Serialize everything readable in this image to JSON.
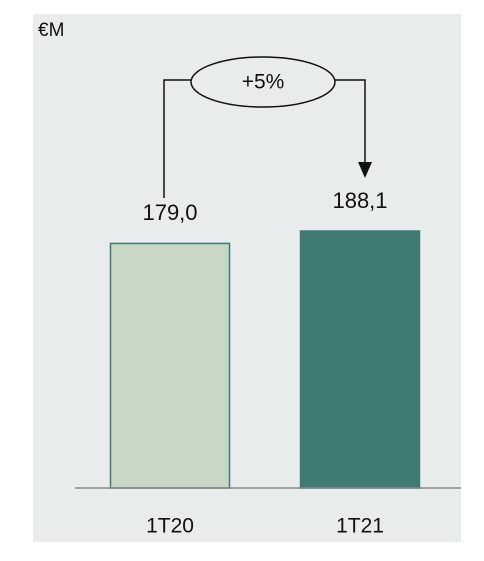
{
  "chart_data": {
    "type": "bar",
    "unit": "€M",
    "categories": [
      "1T20",
      "1T21"
    ],
    "values": [
      179.0,
      188.1
    ],
    "value_labels": [
      "179,0",
      "188,1"
    ],
    "colors": [
      "#c9d7c6",
      "#3f7b72"
    ],
    "annotation": "+5%"
  }
}
